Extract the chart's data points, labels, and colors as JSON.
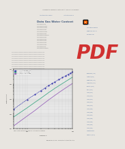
{
  "title_header": "Low Temperature Methane Gas Water Content - Campbell Tip of The Month",
  "subtitle": "Data Gas Water Content",
  "bg_color": "#f2f0ed",
  "page_bg": "#e8e5e0",
  "content_bg": "#f2f0ed",
  "chart_bg": "#e8e8e8",
  "grid_color": "#cccccc",
  "curves": [
    {
      "label": "-10 C (14F) to 1000 psia data",
      "color": "#3333aa",
      "style": "dotted",
      "x": [
        50,
        100,
        150,
        200,
        250,
        300,
        350,
        400,
        500,
        600,
        700,
        800,
        900,
        1000
      ],
      "y": [
        200,
        900,
        2000,
        3500,
        5500,
        8000,
        10500,
        13500,
        20000,
        27000,
        35000,
        44000,
        54000,
        65000
      ]
    },
    {
      "label": "-20 C (-4F) to 1000 psia data",
      "color": "#44aa88",
      "style": "solid",
      "x": [
        50,
        100,
        150,
        200,
        250,
        300,
        350,
        400,
        500,
        600,
        700,
        800,
        900,
        1000
      ],
      "y": [
        60,
        250,
        600,
        1100,
        1800,
        2700,
        3700,
        4900,
        7600,
        10800,
        14500,
        18700,
        23500,
        28800
      ]
    },
    {
      "label": "-29 C (-20F) to 1000 psia data",
      "color": "#9966bb",
      "style": "solid",
      "x": [
        50,
        100,
        150,
        200,
        250,
        300,
        350,
        400,
        500,
        600,
        700,
        800,
        900,
        1000
      ],
      "y": [
        15,
        70,
        170,
        340,
        570,
        870,
        1220,
        1640,
        2650,
        3880,
        5300,
        6950,
        8830,
        10900
      ]
    }
  ],
  "xlabel": "Pressure, P",
  "ylabel": "Water Content",
  "xlim": [
    50,
    1000
  ],
  "ylim": [
    10,
    100000
  ],
  "text_color": "#333333",
  "link_color": "#446699",
  "sidebar_right_top": [
    "Search",
    "Contact",
    "Corporate Information",
    "Register for Training",
    "Key Resources"
  ],
  "sidebar_right_bottom": [
    "Magdalena (2015)",
    "Contact (2015)",
    "Registered (2014)",
    "Application (2014)",
    "Monthly (2014)",
    "Daily (2014)",
    "Links (2014)",
    "Links (2013)",
    "Links (2012)",
    "Links (2011)",
    "Links (2010)",
    "Links (2009)",
    "Links (2008)",
    "Links (2007)",
    "Links (2006)",
    "Links (2005)",
    "Links (2004)",
    "Links (2003)",
    "Campbell Book",
    "Summary (2012)"
  ],
  "pdf_color": "#cc1111",
  "header_bg": "#c0bdb8",
  "header_text_color": "#555555",
  "nav_items": [
    "An Introduction Course",
    "Instructor Training"
  ],
  "rss_color": "#ff6600",
  "footer_text": "www.jmcampbell.com - some footer text about the article",
  "caption_text": "Figure: Water content vs pressure for low temperature methane"
}
